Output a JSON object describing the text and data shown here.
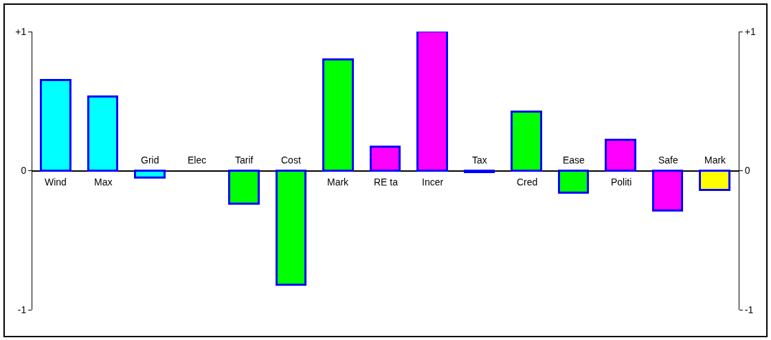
{
  "chart_data": {
    "type": "bar",
    "categories": [
      "Wind",
      "Max",
      "Grid",
      "Elec",
      "Tarif",
      "Cost",
      "Mark",
      "RE ta",
      "Incer",
      "Tax",
      "Cred",
      "Ease",
      "Politi",
      "Safe",
      "Mark"
    ],
    "values": [
      0.65,
      0.53,
      -0.05,
      null,
      -0.24,
      -0.82,
      0.8,
      0.17,
      1.0,
      -0.01,
      0.42,
      -0.16,
      0.22,
      -0.29,
      -0.14
    ],
    "colors": [
      "#00ffff",
      "#00ffff",
      "#00ffff",
      null,
      "#00ff00",
      "#00ff00",
      "#00ff00",
      "#ff00ff",
      "#ff00ff",
      "#0000ff",
      "#00ff00",
      "#00ff00",
      "#ff00ff",
      "#ff00ff",
      "#ffff00"
    ],
    "ylim": [
      -1,
      1
    ],
    "yticks": [
      {
        "value": 1,
        "label": "+1"
      },
      0,
      {
        "value": -1,
        "label": "-1"
      }
    ],
    "y2lim": [
      -1,
      1
    ],
    "y2ticks": [
      {
        "value": 1,
        "label": "+1"
      },
      0,
      {
        "value": -1,
        "label": "-1"
      }
    ]
  }
}
